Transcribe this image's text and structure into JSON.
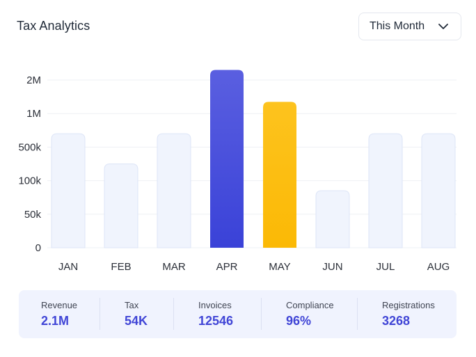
{
  "header": {
    "title": "Tax Analytics",
    "period_select": {
      "value": "This Month",
      "icon": "chevron-down-icon"
    }
  },
  "chart_data": {
    "type": "bar",
    "categories": [
      "JAN",
      "FEB",
      "MAR",
      "APR",
      "MAY",
      "JUN",
      "JUL",
      "AUG"
    ],
    "y_ticks": [
      "0",
      "50k",
      "100k",
      "500k",
      "1M",
      "2M"
    ],
    "values_label": "bar level on the categorical y-axis (tick index units: 0=0, 1=50k, 2=100k, 3=500k, 4=1M, 5=2M)",
    "values": [
      3.4,
      2.5,
      3.4,
      5.3,
      4.35,
      1.7,
      3.4,
      3.4
    ],
    "highlighted": {
      "APR": "#3f46dc",
      "MAY": "#fcba0c"
    },
    "default_bar_color": "#f0f4fd",
    "grid": true,
    "title": "",
    "xlabel": "",
    "ylabel": ""
  },
  "stats": [
    {
      "label": "Revenue",
      "value": "2.1M"
    },
    {
      "label": "Tax",
      "value": "54K"
    },
    {
      "label": "Invoices",
      "value": "12546"
    },
    {
      "label": "Compliance",
      "value": "96%"
    },
    {
      "label": "Registrations",
      "value": "3268"
    }
  ],
  "colors": {
    "accent": "#4045d6",
    "highlight": "#fcba0c",
    "panel": "#f0f3fe"
  }
}
